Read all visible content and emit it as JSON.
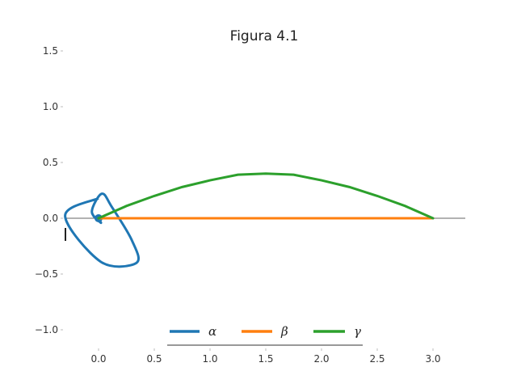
{
  "chart_data": {
    "type": "line",
    "title": "Figura 4.1",
    "xlabel": "",
    "ylabel": "",
    "xlim": [
      -0.3,
      3.3
    ],
    "ylim": [
      -1.15,
      1.55
    ],
    "x_ticks": [
      "0.0",
      "0.5",
      "1.0",
      "1.5",
      "2.0",
      "2.5",
      "3.0"
    ],
    "y_ticks": [
      "1.5",
      "1.0",
      "0.5",
      "0.0",
      "−0.5",
      "−1.0"
    ],
    "grid": false,
    "legend": "bottom-center",
    "series": [
      {
        "name": "α",
        "color": "#1f77b4",
        "kind": "spiral",
        "center": [
          0.0,
          0.0
        ],
        "x": [
          0.0,
          0.02,
          -0.06,
          0.03,
          0.12,
          0.3,
          0.34,
          0.02,
          -0.3,
          0.0
        ],
        "y": [
          0.0,
          -0.04,
          0.06,
          0.22,
          0.1,
          -0.2,
          -0.4,
          -0.39,
          0.02,
          0.18
        ]
      },
      {
        "name": "β",
        "color": "#ff7f0e",
        "x": [
          0.0,
          3.0
        ],
        "y": [
          0.0,
          0.0
        ]
      },
      {
        "name": "γ",
        "color": "#2ca02c",
        "x": [
          0.0,
          0.25,
          0.5,
          0.75,
          1.0,
          1.25,
          1.5,
          1.75,
          2.0,
          2.25,
          2.5,
          2.75,
          3.0
        ],
        "y": [
          0.0,
          0.11,
          0.2,
          0.28,
          0.34,
          0.39,
          0.4,
          0.39,
          0.34,
          0.28,
          0.2,
          0.11,
          0.0
        ]
      }
    ]
  }
}
